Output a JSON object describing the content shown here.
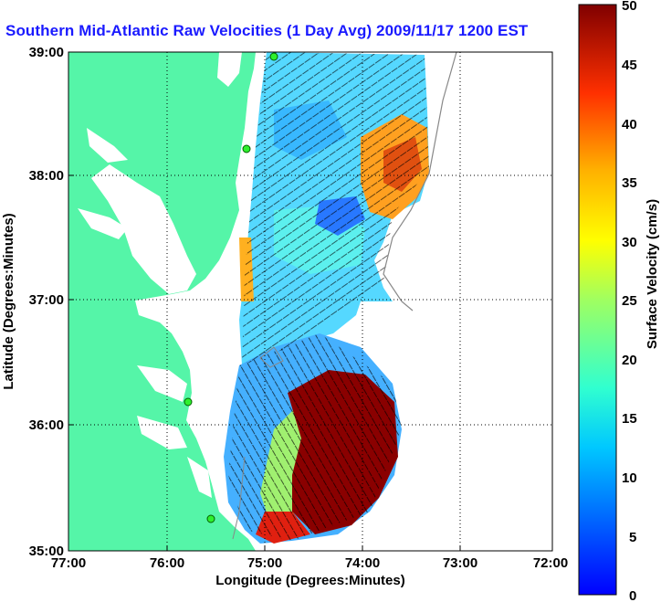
{
  "title": "Southern Mid-Atlantic Raw Velocities (1 Day Avg) 2009/11/17 1200 EST",
  "map": {
    "xlabel": "Longitude (Degrees:Minutes)",
    "ylabel": "Latitude (Degrees:Minutes)",
    "x_ticks": [
      "77:00",
      "76:00",
      "75:00",
      "74:00",
      "73:00",
      "72:00"
    ],
    "y_ticks": [
      "39:00",
      "38:00",
      "37:00",
      "36:00",
      "35:00"
    ],
    "land_color": "#55f5a8",
    "grid": "dotted"
  },
  "colorbar": {
    "label": "Surface Velocity (cm/s)",
    "ticks": [
      "50",
      "45",
      "40",
      "35",
      "30",
      "25",
      "20",
      "15",
      "10",
      "5",
      "0"
    ],
    "min": 0,
    "max": 50,
    "colormap": "jet"
  },
  "stations": [
    "station-1",
    "station-2",
    "station-3",
    "station-4"
  ]
}
